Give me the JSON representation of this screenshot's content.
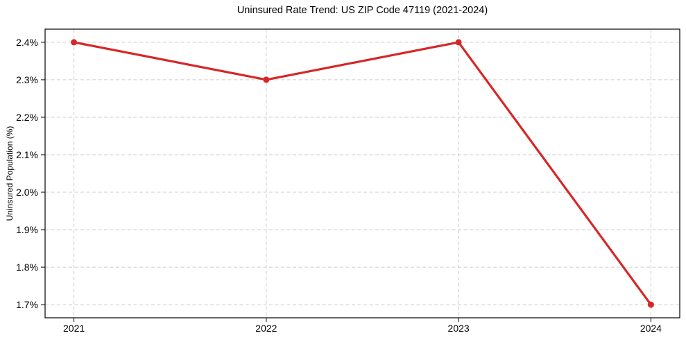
{
  "figure": {
    "background": "#ffffff"
  },
  "chart_data": {
    "type": "line",
    "title": "Uninsured Rate Trend: US ZIP Code 47119 (2021-2024)",
    "xlabel": "",
    "ylabel": "Uninsured Population (%)",
    "x": [
      2021,
      2022,
      2023,
      2024
    ],
    "x_tick_labels": [
      "2021",
      "2022",
      "2023",
      "2024"
    ],
    "values": [
      2.4,
      2.3,
      2.4,
      1.7
    ],
    "y_ticks": [
      1.7,
      1.8,
      1.9,
      2.0,
      2.1,
      2.2,
      2.3,
      2.4
    ],
    "y_tick_labels": [
      "1.7%",
      "1.8%",
      "1.9%",
      "2.0%",
      "2.1%",
      "2.2%",
      "2.3%",
      "2.4%"
    ],
    "xlim": [
      2020.85,
      2024.15
    ],
    "ylim": [
      1.665,
      2.435
    ],
    "grid": true,
    "grid_style": "dashed",
    "legend": "none",
    "line_color": "#d62728",
    "marker": "circle",
    "marker_color": "#d62728",
    "grid_color": "#cccccc",
    "axis_color": "#000000",
    "text_color": "#000000"
  }
}
